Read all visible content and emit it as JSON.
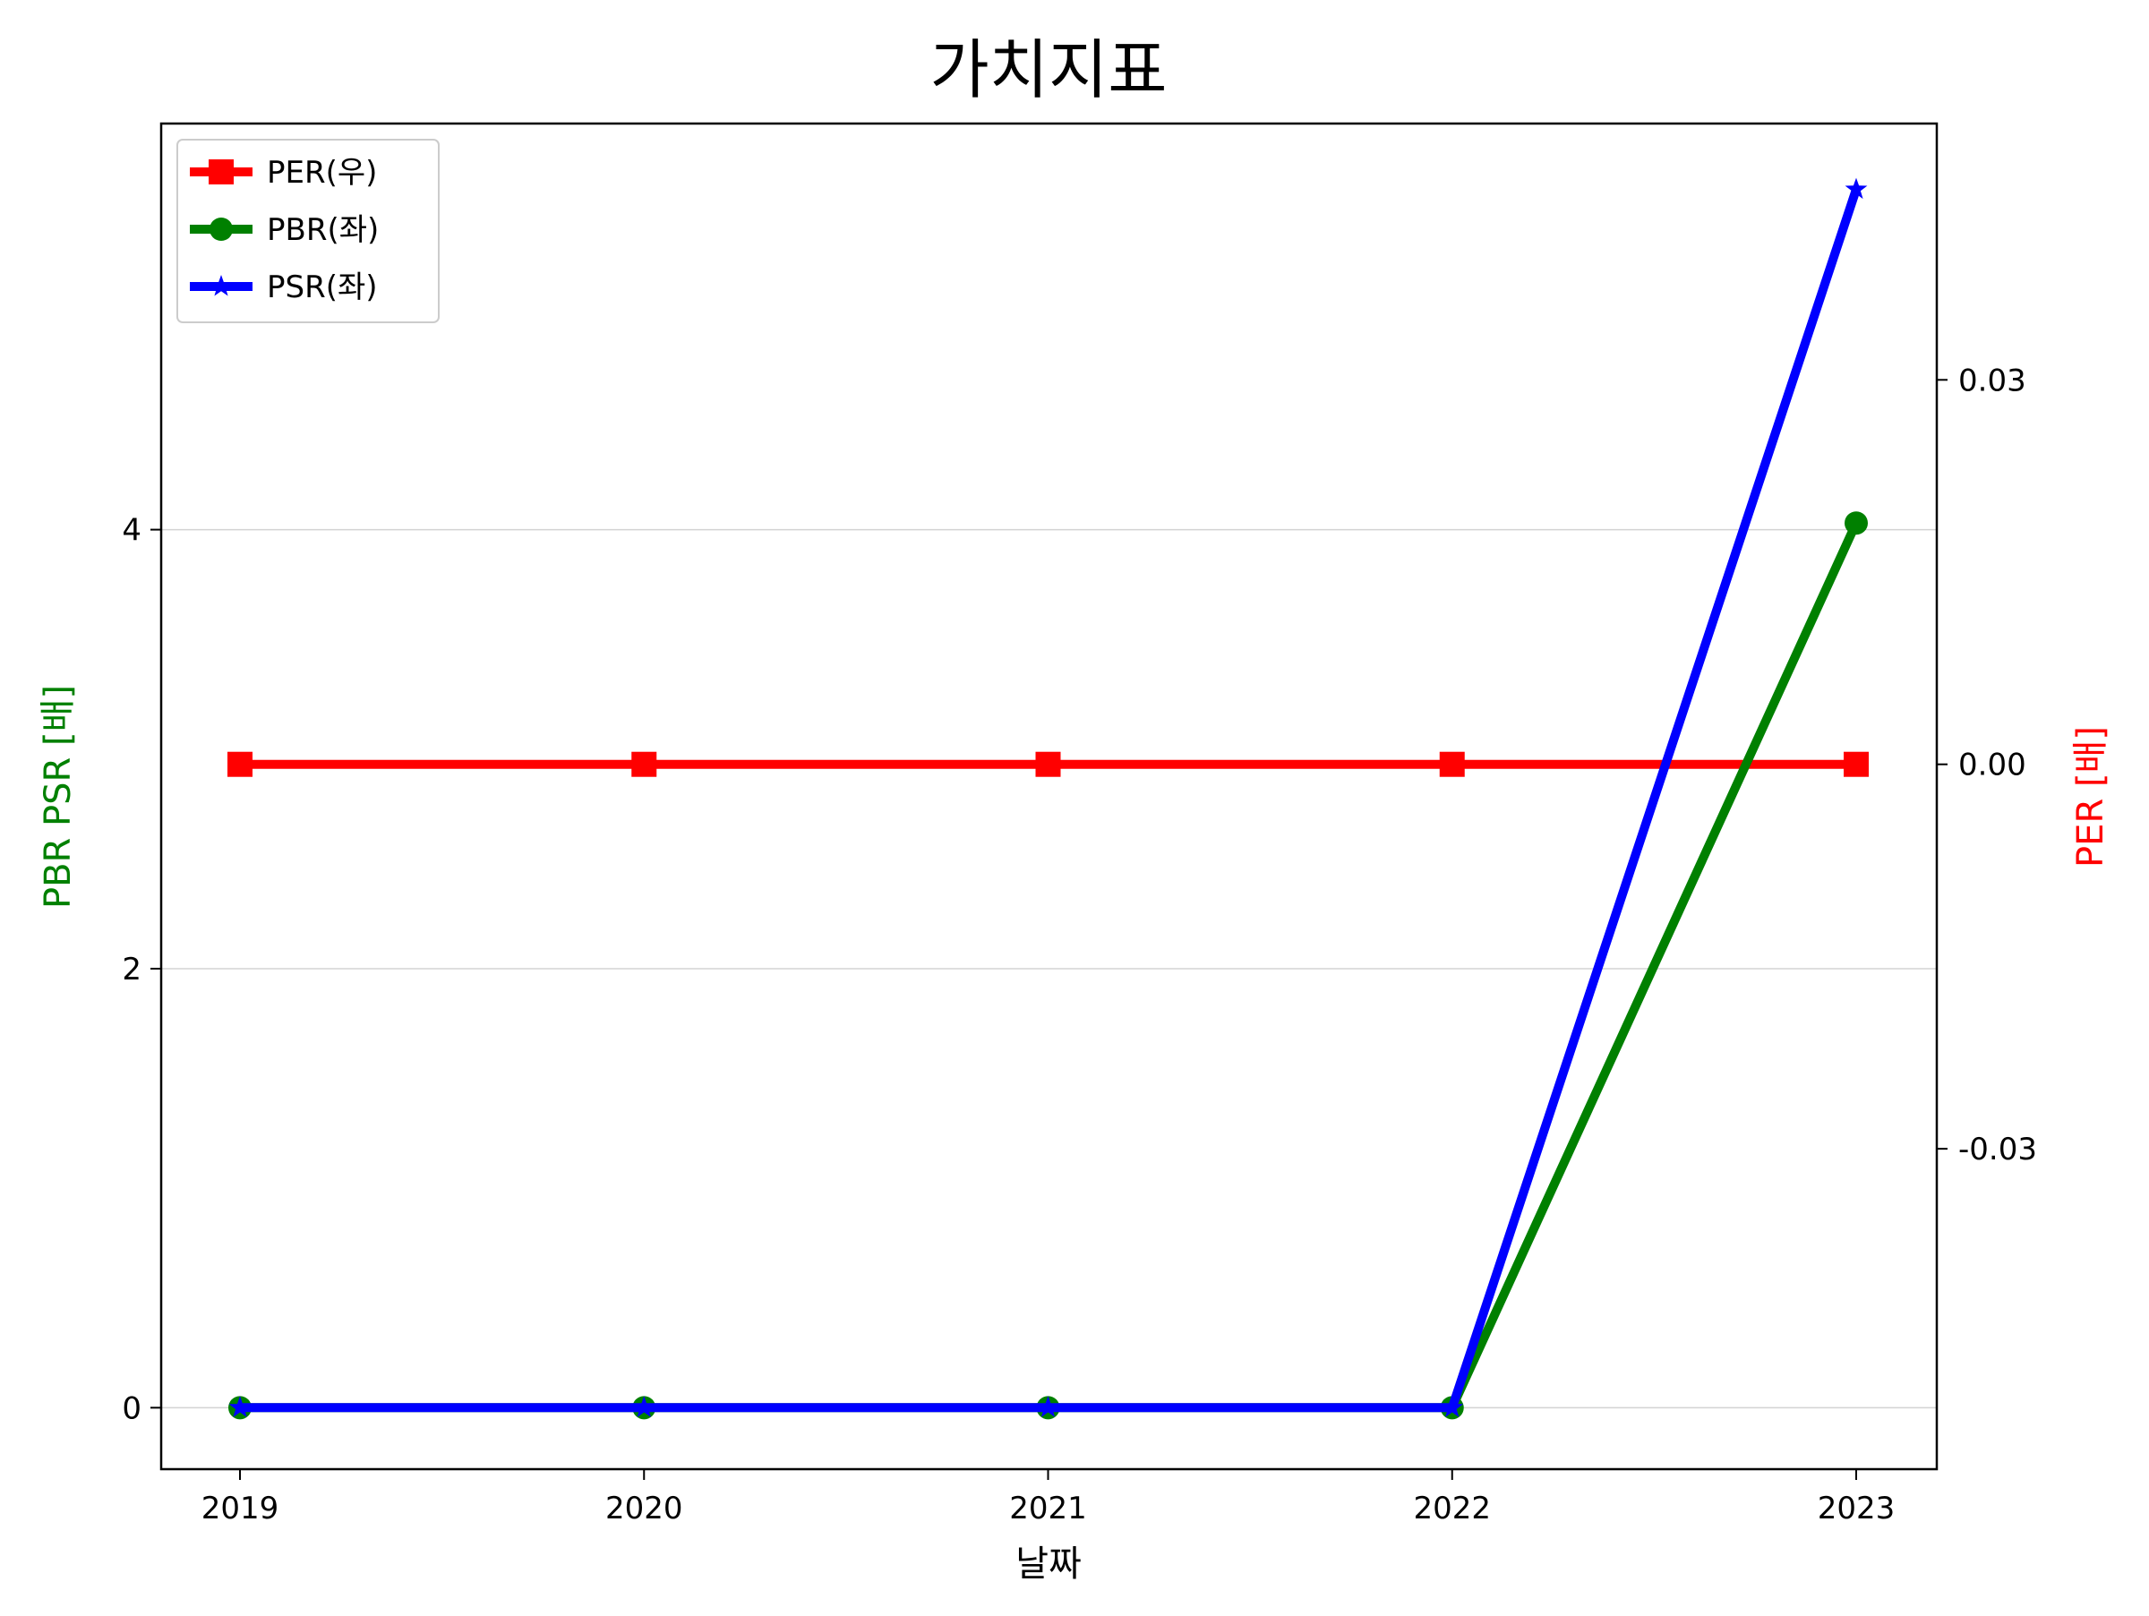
{
  "chart_data": {
    "type": "line",
    "title": "가치지표",
    "xlabel": "날짜",
    "ylabel_left": "PBR PSR [배]",
    "ylabel_right": "PER [배]",
    "categories": [
      "2019",
      "2020",
      "2021",
      "2022",
      "2023"
    ],
    "left_axis": {
      "ylim": [
        -0.28,
        5.85
      ],
      "ticks": [
        0,
        2,
        4
      ],
      "tick_labels": [
        "0",
        "2",
        "4"
      ],
      "grid": true
    },
    "right_axis": {
      "ylim": [
        -0.055,
        0.05
      ],
      "ticks": [
        -0.03,
        0.0,
        0.03
      ],
      "tick_labels": [
        "-0.03",
        "0.00",
        "0.03"
      ]
    },
    "series": [
      {
        "name": "PER(우)",
        "axis": "right",
        "color": "#ff0000",
        "marker": "square",
        "values": [
          0,
          0,
          0,
          0,
          0
        ]
      },
      {
        "name": "PBR(좌)",
        "axis": "left",
        "color": "#008000",
        "marker": "circle",
        "values": [
          0,
          0,
          0,
          0,
          4.03
        ]
      },
      {
        "name": "PSR(좌)",
        "axis": "left",
        "color": "#0000ff",
        "marker": "star",
        "values": [
          0,
          0,
          0,
          0,
          5.55
        ]
      }
    ],
    "legend": {
      "placement": "top-left",
      "entries": [
        "PER(우)",
        "PBR(좌)",
        "PSR(좌)"
      ]
    },
    "colors": {
      "left_label": "#008000",
      "right_label": "#ff0000",
      "grid": "#d3d3d3"
    }
  }
}
